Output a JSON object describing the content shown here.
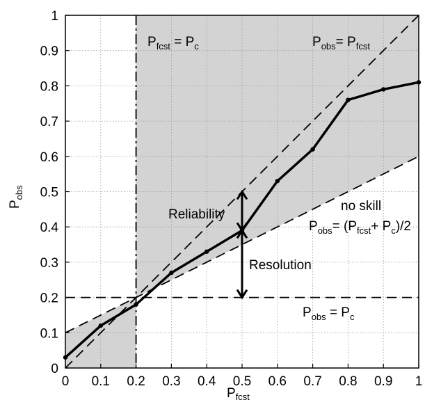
{
  "chart_data": {
    "type": "line",
    "xlabel": "P",
    "xlabel_sub": "fcst",
    "ylabel": "P",
    "ylabel_sub": "obs",
    "xlim": [
      0,
      1
    ],
    "ylim": [
      0,
      1
    ],
    "grid": true,
    "x_ticks": [
      "0",
      "0.1",
      "0.2",
      "0.3",
      "0.4",
      "0.5",
      "0.6",
      "0.7",
      "0.8",
      "0.9",
      "1"
    ],
    "y_ticks": [
      "0",
      "0.1",
      "0.2",
      "0.3",
      "0.4",
      "0.5",
      "0.6",
      "0.7",
      "0.8",
      "0.9",
      "1"
    ],
    "climatology": 0.2,
    "series": [
      {
        "x": [
          0,
          0.1,
          0.2,
          0.3,
          0.4,
          0.5,
          0.6,
          0.7,
          0.8,
          0.9,
          1.0
        ],
        "y": [
          0.03,
          0.12,
          0.18,
          0.27,
          0.33,
          0.39,
          0.53,
          0.62,
          0.76,
          0.79,
          0.81
        ],
        "color": "#000000"
      }
    ],
    "reference_lines": {
      "perfect": {
        "from": [
          0,
          0
        ],
        "to": [
          1,
          1
        ]
      },
      "no_skill": {
        "from": [
          0,
          0.1
        ],
        "to": [
          1,
          0.6
        ]
      },
      "climatology_horizontal": {
        "y": 0.2
      },
      "climatology_vertical": {
        "x": 0.2
      }
    },
    "shading_color": "#d3d3d3",
    "arrows": {
      "reliability": {
        "x": 0.5,
        "y_from": 0.5,
        "y_to": 0.39
      },
      "resolution": {
        "x": 0.5,
        "y_from": 0.39,
        "y_to": 0.2
      }
    },
    "annotations": {
      "pfcst_eq_pc": {
        "p1": "P",
        "s1": "fcst",
        "mid": " = P",
        "s2": "c"
      },
      "pobs_eq_pfcst": {
        "p1": "P",
        "s1": "obs",
        "mid": "= P",
        "s2": "fcst"
      },
      "reliability": "Reliability",
      "resolution": "Resolution",
      "no_skill": "no skill",
      "no_skill_formula": {
        "p1": "P",
        "s1": "obs",
        "p2": "= (P",
        "s2": "fcst",
        "p3": "+ P",
        "s3": "c",
        "p4": ")/2"
      },
      "pobs_eq_pc": {
        "p1": "P",
        "s1": "obs",
        "mid": " = P",
        "s2": "c"
      }
    }
  }
}
